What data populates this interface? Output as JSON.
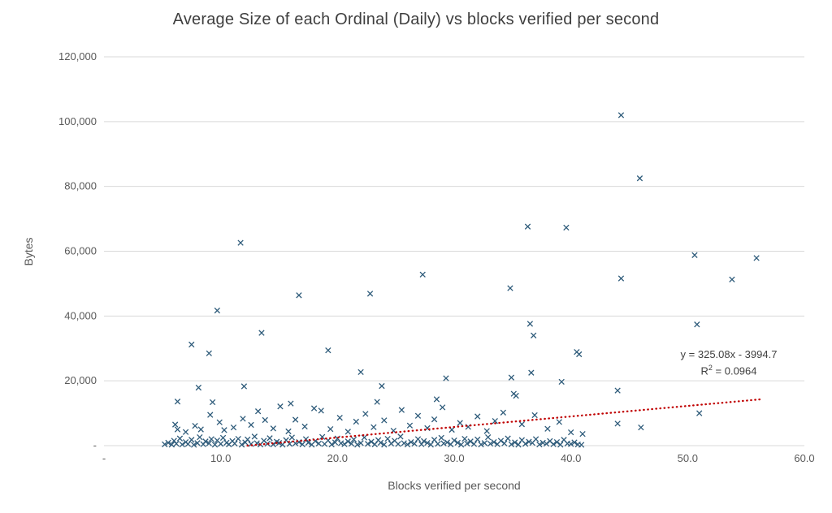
{
  "chart_data": {
    "type": "scatter",
    "title": "Average Size of each Ordinal (Daily) vs blocks verified per second",
    "xlabel": "Blocks verified per second",
    "ylabel": "Bytes",
    "xlim": [
      0,
      60
    ],
    "ylim": [
      0,
      120000
    ],
    "grid": "horizontal",
    "legend": "none",
    "x_ticks": {
      "values": [
        0,
        10,
        20,
        30,
        40,
        50,
        60
      ],
      "labels": [
        "-",
        "10.0",
        "20.0",
        "30.0",
        "40.0",
        "50.0",
        "60.0"
      ]
    },
    "y_ticks": {
      "values": [
        0,
        20000,
        40000,
        60000,
        80000,
        100000,
        120000
      ],
      "labels": [
        "-",
        "20,000",
        "40,000",
        "60,000",
        "80,000",
        "100,000",
        "120,000"
      ]
    },
    "marker": {
      "shape": "x",
      "color": "#2e5b7a",
      "size": 3.2
    },
    "gridline_color": "#d9d9d9",
    "trendline": {
      "type": "linear",
      "slope": 325.08,
      "intercept": -3994.7,
      "color": "#c00000",
      "style": "dotted",
      "x_start": 12.29,
      "x_end": 56.2
    },
    "annotation": {
      "line1": "y = 325.08x - 3994.7",
      "r2_prefix": "R",
      "r2_sup": "2",
      "r2_suffix": " = 0.0964"
    },
    "points": [
      [
        5.2,
        400
      ],
      [
        5.5,
        900
      ],
      [
        5.8,
        300
      ],
      [
        6.0,
        1500
      ],
      [
        6.2,
        600
      ],
      [
        6.5,
        2200
      ],
      [
        6.7,
        350
      ],
      [
        7.0,
        1100
      ],
      [
        7.2,
        500
      ],
      [
        7.5,
        1800
      ],
      [
        7.7,
        250
      ],
      [
        8.0,
        800
      ],
      [
        8.2,
        2600
      ],
      [
        8.5,
        450
      ],
      [
        8.7,
        1300
      ],
      [
        9.0,
        700
      ],
      [
        9.2,
        2000
      ],
      [
        9.5,
        300
      ],
      [
        9.7,
        1600
      ],
      [
        10.0,
        550
      ],
      [
        10.2,
        2400
      ],
      [
        10.5,
        900
      ],
      [
        10.7,
        400
      ],
      [
        11.0,
        1400
      ],
      [
        11.2,
        650
      ],
      [
        11.5,
        2100
      ],
      [
        11.8,
        300
      ],
      [
        12.1,
        1000
      ],
      [
        12.3,
        1900
      ],
      [
        12.6,
        500
      ],
      [
        12.9,
        2800
      ],
      [
        13.1,
        750
      ],
      [
        13.4,
        350
      ],
      [
        13.7,
        1500
      ],
      [
        14.0,
        600
      ],
      [
        14.2,
        2300
      ],
      [
        14.5,
        400
      ],
      [
        14.8,
        1200
      ],
      [
        15.0,
        850
      ],
      [
        15.3,
        300
      ],
      [
        15.6,
        1700
      ],
      [
        15.9,
        550
      ],
      [
        16.1,
        2500
      ],
      [
        16.4,
        700
      ],
      [
        16.7,
        1100
      ],
      [
        17.0,
        400
      ],
      [
        17.3,
        2000
      ],
      [
        17.5,
        900
      ],
      [
        17.8,
        300
      ],
      [
        18.1,
        1400
      ],
      [
        18.4,
        650
      ],
      [
        18.7,
        2700
      ],
      [
        18.9,
        500
      ],
      [
        19.2,
        1600
      ],
      [
        19.5,
        350
      ],
      [
        19.8,
        1000
      ],
      [
        20.0,
        2200
      ],
      [
        20.3,
        750
      ],
      [
        20.6,
        450
      ],
      [
        20.9,
        1300
      ],
      [
        21.2,
        600
      ],
      [
        21.4,
        1900
      ],
      [
        21.7,
        300
      ],
      [
        22.0,
        800
      ],
      [
        22.3,
        2500
      ],
      [
        22.6,
        550
      ],
      [
        22.9,
        1200
      ],
      [
        23.2,
        400
      ],
      [
        23.5,
        1700
      ],
      [
        23.7,
        900
      ],
      [
        24.0,
        300
      ],
      [
        24.3,
        2100
      ],
      [
        24.6,
        650
      ],
      [
        24.9,
        1500
      ],
      [
        25.2,
        500
      ],
      [
        25.4,
        2800
      ],
      [
        25.7,
        750
      ],
      [
        26.0,
        350
      ],
      [
        26.3,
        1100
      ],
      [
        26.6,
        600
      ],
      [
        26.9,
        2000
      ],
      [
        27.2,
        450
      ],
      [
        27.4,
        1400
      ],
      [
        27.7,
        850
      ],
      [
        28.0,
        300
      ],
      [
        28.3,
        1800
      ],
      [
        28.6,
        550
      ],
      [
        28.9,
        2400
      ],
      [
        29.1,
        700
      ],
      [
        29.4,
        1000
      ],
      [
        29.7,
        400
      ],
      [
        30.0,
        1600
      ],
      [
        30.3,
        900
      ],
      [
        30.6,
        300
      ],
      [
        30.9,
        2100
      ],
      [
        31.1,
        650
      ],
      [
        31.4,
        1300
      ],
      [
        31.7,
        500
      ],
      [
        32.0,
        1900
      ],
      [
        32.3,
        350
      ],
      [
        32.6,
        800
      ],
      [
        32.9,
        2600
      ],
      [
        33.1,
        600
      ],
      [
        33.4,
        1100
      ],
      [
        33.7,
        450
      ],
      [
        34.0,
        1500
      ],
      [
        34.3,
        700
      ],
      [
        34.6,
        2200
      ],
      [
        34.9,
        400
      ],
      [
        35.2,
        1000
      ],
      [
        35.5,
        300
      ],
      [
        35.8,
        1700
      ],
      [
        36.1,
        550
      ],
      [
        36.4,
        1200
      ],
      [
        36.7,
        850
      ],
      [
        37.0,
        2000
      ],
      [
        37.3,
        350
      ],
      [
        37.6,
        900
      ],
      [
        37.9,
        600
      ],
      [
        38.2,
        1400
      ],
      [
        38.5,
        450
      ],
      [
        38.8,
        1100
      ],
      [
        39.1,
        300
      ],
      [
        39.4,
        1800
      ],
      [
        39.7,
        650
      ],
      [
        40.0,
        500
      ],
      [
        40.3,
        1000
      ],
      [
        40.6,
        350
      ],
      [
        40.9,
        250
      ],
      [
        6.1,
        6500
      ],
      [
        6.3,
        5000
      ],
      [
        7.0,
        4200
      ],
      [
        7.8,
        6100
      ],
      [
        8.3,
        5000
      ],
      [
        9.1,
        9500
      ],
      [
        9.9,
        7200
      ],
      [
        10.3,
        4800
      ],
      [
        11.1,
        5600
      ],
      [
        11.9,
        8300
      ],
      [
        12.6,
        6400
      ],
      [
        13.2,
        10600
      ],
      [
        13.8,
        7900
      ],
      [
        14.5,
        5300
      ],
      [
        15.1,
        12100
      ],
      [
        15.8,
        4400
      ],
      [
        16.4,
        8000
      ],
      [
        17.2,
        5900
      ],
      [
        18.0,
        11500
      ],
      [
        18.6,
        10800
      ],
      [
        19.4,
        5100
      ],
      [
        20.2,
        8600
      ],
      [
        20.9,
        4300
      ],
      [
        21.6,
        7400
      ],
      [
        22.4,
        9800
      ],
      [
        23.1,
        5700
      ],
      [
        24.0,
        7800
      ],
      [
        24.8,
        4600
      ],
      [
        25.5,
        11000
      ],
      [
        26.2,
        6200
      ],
      [
        26.9,
        9200
      ],
      [
        27.7,
        5400
      ],
      [
        28.3,
        8100
      ],
      [
        29.0,
        11800
      ],
      [
        29.8,
        4900
      ],
      [
        30.5,
        7000
      ],
      [
        31.2,
        5800
      ],
      [
        32.0,
        9000
      ],
      [
        32.8,
        4500
      ],
      [
        33.5,
        7600
      ],
      [
        34.2,
        10200
      ],
      [
        35.8,
        6600
      ],
      [
        36.9,
        9400
      ],
      [
        38.0,
        5200
      ],
      [
        39.0,
        7300
      ],
      [
        40.0,
        4100
      ],
      [
        41.0,
        3600
      ],
      [
        44.0,
        6800
      ],
      [
        46.0,
        5600
      ],
      [
        51.0,
        10000
      ],
      [
        22.0,
        22700
      ],
      [
        36.6,
        22500
      ],
      [
        34.9,
        21000
      ],
      [
        29.3,
        20800
      ],
      [
        39.2,
        19700
      ],
      [
        23.8,
        18400
      ],
      [
        12.0,
        18300
      ],
      [
        8.1,
        17900
      ],
      [
        44.0,
        17000
      ],
      [
        35.1,
        16000
      ],
      [
        35.3,
        15400
      ],
      [
        28.5,
        14300
      ],
      [
        23.4,
        13500
      ],
      [
        6.3,
        13600
      ],
      [
        9.3,
        13400
      ],
      [
        16.0,
        13000
      ],
      [
        44.3,
        102000
      ],
      [
        45.9,
        82500
      ],
      [
        36.3,
        67600
      ],
      [
        39.6,
        67300
      ],
      [
        11.7,
        62600
      ],
      [
        50.6,
        58800
      ],
      [
        55.9,
        57900
      ],
      [
        27.3,
        52800
      ],
      [
        44.3,
        51600
      ],
      [
        53.8,
        51300
      ],
      [
        34.8,
        48600
      ],
      [
        22.8,
        46900
      ],
      [
        16.7,
        46400
      ],
      [
        9.7,
        41700
      ],
      [
        36.5,
        37600
      ],
      [
        50.8,
        37400
      ],
      [
        13.5,
        34800
      ],
      [
        36.8,
        34000
      ],
      [
        7.5,
        31200
      ],
      [
        19.2,
        29400
      ],
      [
        9.0,
        28500
      ],
      [
        40.5,
        28900
      ],
      [
        40.7,
        28200
      ]
    ]
  }
}
